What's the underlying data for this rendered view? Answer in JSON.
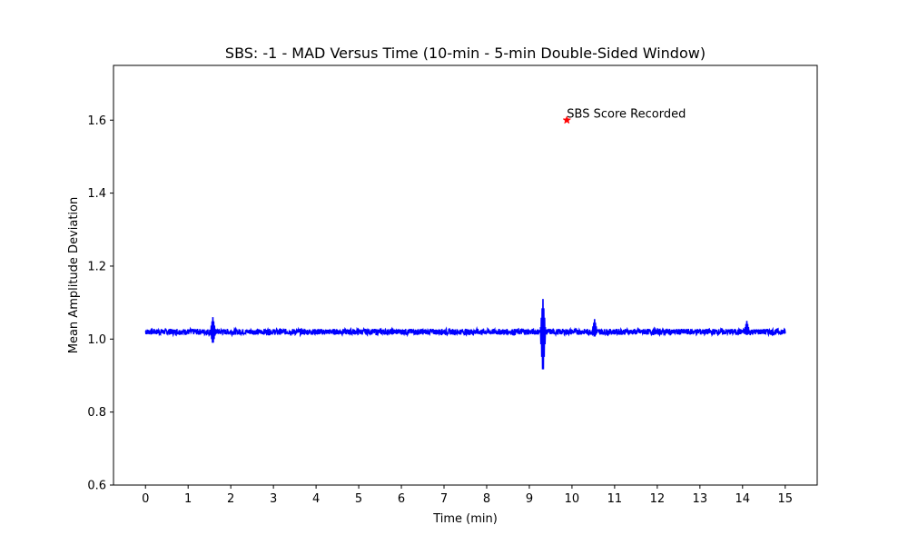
{
  "chart_data": {
    "type": "line",
    "title": "SBS: -1 - MAD Versus Time (10-min - 5-min Double-Sided Window)",
    "xlabel": "Time (min)",
    "ylabel": "Mean Amplitude Deviation",
    "xlim": [
      -0.75,
      15.75
    ],
    "ylim": [
      0.6,
      1.75
    ],
    "xticks": [
      "0",
      "1",
      "2",
      "3",
      "4",
      "5",
      "6",
      "7",
      "8",
      "9",
      "10",
      "11",
      "12",
      "13",
      "14",
      "15"
    ],
    "yticks": [
      "0.6",
      "0.8",
      "1.0",
      "1.2",
      "1.4",
      "1.6"
    ],
    "grid": false,
    "series": [
      {
        "color": "#0000ff",
        "x_range": [
          0,
          15
        ],
        "baseline": 1.02,
        "noise_amplitude": 0.008,
        "spikes": [
          {
            "x": 1.58,
            "min": 0.985,
            "max": 1.06
          },
          {
            "x": 9.32,
            "min": 0.9,
            "max": 1.11
          },
          {
            "x": 10.53,
            "min": 1.005,
            "max": 1.055
          },
          {
            "x": 14.1,
            "min": 1.01,
            "max": 1.05
          }
        ]
      }
    ],
    "annotation": {
      "x": 9.88,
      "y": 1.6,
      "marker": "star",
      "marker_color": "#ff0000",
      "text": "SBS Score Recorded"
    }
  }
}
